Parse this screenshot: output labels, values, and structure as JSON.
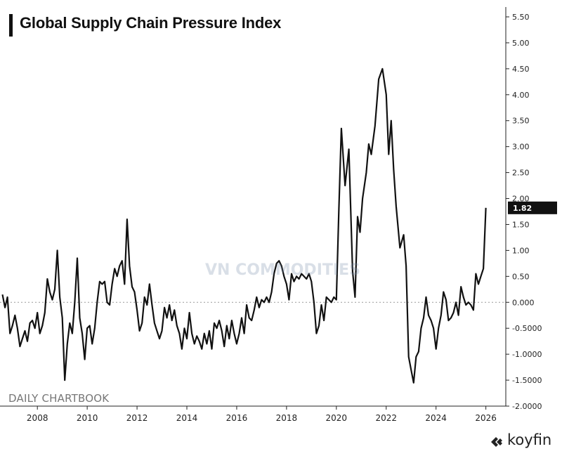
{
  "title": "Global Supply Chain Pressure Index",
  "source_label": "DAILY CHARTBOOK",
  "watermark": "VN COMMODITIES",
  "brand": "koyfin",
  "last_value_label": "1.82",
  "colors": {
    "line": "#111111",
    "label_bg": "#111111",
    "label_text": "#ffffff"
  },
  "chart_data": {
    "type": "line",
    "title": "Global Supply Chain Pressure Index",
    "xlim": [
      2006.5,
      2026.8
    ],
    "ylim": [
      -2.0,
      5.5
    ],
    "x_ticks": [
      "2008",
      "2010",
      "2012",
      "2014",
      "2016",
      "2018",
      "2020",
      "2022",
      "2024",
      "2026"
    ],
    "y_ticks": [
      "5.50",
      "5.00",
      "4.50",
      "4.00",
      "3.50",
      "3.00",
      "2.50",
      "2.00",
      "1.50",
      "1.00",
      "0.50",
      "0.000",
      "-0.5000",
      "-1.0000",
      "-1.5000",
      "-2.0000"
    ],
    "grid": false,
    "zero_line": "dotted",
    "last_value": 1.82,
    "series": [
      {
        "points": [
          [
            2006.6,
            0.15
          ],
          [
            2006.7,
            -0.1
          ],
          [
            2006.8,
            0.1
          ],
          [
            2006.9,
            -0.6
          ],
          [
            2007.0,
            -0.45
          ],
          [
            2007.1,
            -0.25
          ],
          [
            2007.2,
            -0.5
          ],
          [
            2007.3,
            -0.85
          ],
          [
            2007.4,
            -0.7
          ],
          [
            2007.5,
            -0.55
          ],
          [
            2007.6,
            -0.75
          ],
          [
            2007.7,
            -0.4
          ],
          [
            2007.8,
            -0.35
          ],
          [
            2007.9,
            -0.5
          ],
          [
            2008.0,
            -0.2
          ],
          [
            2008.1,
            -0.6
          ],
          [
            2008.2,
            -0.45
          ],
          [
            2008.3,
            -0.2
          ],
          [
            2008.4,
            0.45
          ],
          [
            2008.5,
            0.2
          ],
          [
            2008.6,
            0.05
          ],
          [
            2008.7,
            0.25
          ],
          [
            2008.8,
            1.0
          ],
          [
            2008.9,
            0.1
          ],
          [
            2009.0,
            -0.3
          ],
          [
            2009.1,
            -1.5
          ],
          [
            2009.2,
            -0.8
          ],
          [
            2009.3,
            -0.4
          ],
          [
            2009.4,
            -0.6
          ],
          [
            2009.5,
            0.0
          ],
          [
            2009.6,
            0.85
          ],
          [
            2009.7,
            -0.3
          ],
          [
            2009.8,
            -0.6
          ],
          [
            2009.9,
            -1.1
          ],
          [
            2010.0,
            -0.5
          ],
          [
            2010.1,
            -0.45
          ],
          [
            2010.2,
            -0.8
          ],
          [
            2010.3,
            -0.5
          ],
          [
            2010.4,
            0.0
          ],
          [
            2010.5,
            0.4
          ],
          [
            2010.6,
            0.35
          ],
          [
            2010.7,
            0.4
          ],
          [
            2010.8,
            0.0
          ],
          [
            2010.9,
            -0.05
          ],
          [
            2011.0,
            0.35
          ],
          [
            2011.1,
            0.65
          ],
          [
            2011.2,
            0.5
          ],
          [
            2011.3,
            0.7
          ],
          [
            2011.4,
            0.8
          ],
          [
            2011.5,
            0.35
          ],
          [
            2011.6,
            1.6
          ],
          [
            2011.7,
            0.7
          ],
          [
            2011.8,
            0.3
          ],
          [
            2011.9,
            0.2
          ],
          [
            2012.0,
            -0.15
          ],
          [
            2012.1,
            -0.55
          ],
          [
            2012.2,
            -0.4
          ],
          [
            2012.3,
            0.1
          ],
          [
            2012.4,
            -0.05
          ],
          [
            2012.5,
            0.35
          ],
          [
            2012.6,
            -0.05
          ],
          [
            2012.7,
            -0.4
          ],
          [
            2012.8,
            -0.55
          ],
          [
            2012.9,
            -0.7
          ],
          [
            2013.0,
            -0.55
          ],
          [
            2013.1,
            -0.1
          ],
          [
            2013.2,
            -0.3
          ],
          [
            2013.3,
            -0.05
          ],
          [
            2013.4,
            -0.35
          ],
          [
            2013.5,
            -0.15
          ],
          [
            2013.6,
            -0.45
          ],
          [
            2013.7,
            -0.6
          ],
          [
            2013.8,
            -0.9
          ],
          [
            2013.9,
            -0.5
          ],
          [
            2014.0,
            -0.7
          ],
          [
            2014.1,
            -0.2
          ],
          [
            2014.2,
            -0.6
          ],
          [
            2014.3,
            -0.8
          ],
          [
            2014.4,
            -0.65
          ],
          [
            2014.5,
            -0.75
          ],
          [
            2014.6,
            -0.9
          ],
          [
            2014.7,
            -0.6
          ],
          [
            2014.8,
            -0.8
          ],
          [
            2014.9,
            -0.55
          ],
          [
            2015.0,
            -0.9
          ],
          [
            2015.1,
            -0.4
          ],
          [
            2015.2,
            -0.5
          ],
          [
            2015.3,
            -0.35
          ],
          [
            2015.4,
            -0.55
          ],
          [
            2015.5,
            -0.85
          ],
          [
            2015.6,
            -0.45
          ],
          [
            2015.7,
            -0.7
          ],
          [
            2015.8,
            -0.35
          ],
          [
            2015.9,
            -0.6
          ],
          [
            2016.0,
            -0.8
          ],
          [
            2016.1,
            -0.6
          ],
          [
            2016.2,
            -0.3
          ],
          [
            2016.3,
            -0.6
          ],
          [
            2016.4,
            -0.05
          ],
          [
            2016.5,
            -0.3
          ],
          [
            2016.6,
            -0.35
          ],
          [
            2016.7,
            -0.15
          ],
          [
            2016.8,
            0.1
          ],
          [
            2016.9,
            -0.1
          ],
          [
            2017.0,
            0.05
          ],
          [
            2017.1,
            0.0
          ],
          [
            2017.2,
            0.1
          ],
          [
            2017.3,
            0.0
          ],
          [
            2017.4,
            0.2
          ],
          [
            2017.5,
            0.55
          ],
          [
            2017.6,
            0.75
          ],
          [
            2017.7,
            0.8
          ],
          [
            2017.8,
            0.7
          ],
          [
            2017.9,
            0.5
          ],
          [
            2018.0,
            0.35
          ],
          [
            2018.1,
            0.05
          ],
          [
            2018.2,
            0.55
          ],
          [
            2018.3,
            0.4
          ],
          [
            2018.4,
            0.5
          ],
          [
            2018.5,
            0.45
          ],
          [
            2018.6,
            0.55
          ],
          [
            2018.7,
            0.5
          ],
          [
            2018.8,
            0.45
          ],
          [
            2018.9,
            0.55
          ],
          [
            2019.0,
            0.4
          ],
          [
            2019.1,
            0.0
          ],
          [
            2019.2,
            -0.6
          ],
          [
            2019.3,
            -0.45
          ],
          [
            2019.4,
            -0.05
          ],
          [
            2019.5,
            -0.35
          ],
          [
            2019.6,
            0.1
          ],
          [
            2019.7,
            0.05
          ],
          [
            2019.8,
            0.0
          ],
          [
            2019.9,
            0.1
          ],
          [
            2020.0,
            0.05
          ],
          [
            2020.1,
            1.8
          ],
          [
            2020.2,
            3.35
          ],
          [
            2020.35,
            2.25
          ],
          [
            2020.5,
            2.95
          ],
          [
            2020.65,
            0.6
          ],
          [
            2020.75,
            0.1
          ],
          [
            2020.85,
            1.65
          ],
          [
            2020.95,
            1.35
          ],
          [
            2021.05,
            2.0
          ],
          [
            2021.2,
            2.5
          ],
          [
            2021.3,
            3.05
          ],
          [
            2021.4,
            2.85
          ],
          [
            2021.55,
            3.4
          ],
          [
            2021.7,
            4.3
          ],
          [
            2021.85,
            4.5
          ],
          [
            2022.0,
            4.0
          ],
          [
            2022.1,
            2.85
          ],
          [
            2022.2,
            3.5
          ],
          [
            2022.3,
            2.55
          ],
          [
            2022.4,
            1.85
          ],
          [
            2022.55,
            1.05
          ],
          [
            2022.7,
            1.3
          ],
          [
            2022.8,
            0.7
          ],
          [
            2022.9,
            -1.05
          ],
          [
            2023.0,
            -1.3
          ],
          [
            2023.1,
            -1.55
          ],
          [
            2023.2,
            -1.05
          ],
          [
            2023.3,
            -0.95
          ],
          [
            2023.4,
            -0.5
          ],
          [
            2023.5,
            -0.3
          ],
          [
            2023.6,
            0.1
          ],
          [
            2023.7,
            -0.25
          ],
          [
            2023.8,
            -0.35
          ],
          [
            2023.9,
            -0.5
          ],
          [
            2024.0,
            -0.9
          ],
          [
            2024.1,
            -0.5
          ],
          [
            2024.2,
            -0.25
          ],
          [
            2024.3,
            0.2
          ],
          [
            2024.4,
            0.05
          ],
          [
            2024.5,
            -0.35
          ],
          [
            2024.6,
            -0.3
          ],
          [
            2024.7,
            -0.2
          ],
          [
            2024.8,
            0.0
          ],
          [
            2024.9,
            -0.25
          ],
          [
            2025.0,
            0.3
          ],
          [
            2025.1,
            0.1
          ],
          [
            2025.2,
            -0.05
          ],
          [
            2025.3,
            0.0
          ],
          [
            2025.4,
            -0.05
          ],
          [
            2025.5,
            -0.15
          ],
          [
            2025.6,
            0.55
          ],
          [
            2025.7,
            0.35
          ],
          [
            2025.8,
            0.5
          ],
          [
            2025.9,
            0.65
          ],
          [
            2026.0,
            1.82
          ]
        ]
      }
    ]
  }
}
